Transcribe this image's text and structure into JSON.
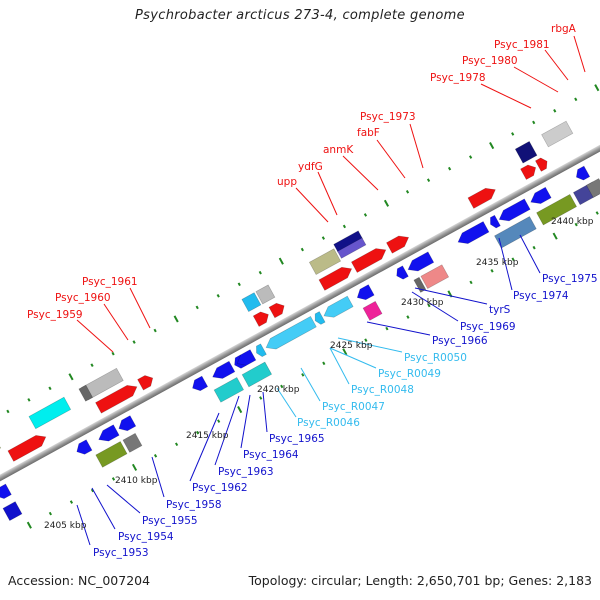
{
  "title": "Psychrobacter arcticus 273-4, complete genome",
  "footer": {
    "accession": "Accession: NC_007204",
    "summary": "Topology: circular; Length: 2,650,701 bp; Genes: 2,183"
  },
  "colors": {
    "forward_label": "#ee1111",
    "reverse_label": "#1111cc",
    "rna_label": "#33bbee",
    "backbone": "#999999",
    "tick": "#228822"
  },
  "kbp_ticks": [
    {
      "label": "2405 kbp"
    },
    {
      "label": "2410 kbp"
    },
    {
      "label": "2415 kbp"
    },
    {
      "label": "2420 kbp"
    },
    {
      "label": "2425 kbp"
    },
    {
      "label": "2430 kbp"
    },
    {
      "label": "2435 kbp"
    },
    {
      "label": "2440 kbp"
    }
  ],
  "top_labels": [
    {
      "text": "Psyc_1959",
      "strand": "forward"
    },
    {
      "text": "Psyc_1960",
      "strand": "forward"
    },
    {
      "text": "Psyc_1961",
      "strand": "forward"
    },
    {
      "text": "upp",
      "strand": "forward"
    },
    {
      "text": "ydfG",
      "strand": "forward"
    },
    {
      "text": "anmK",
      "strand": "forward"
    },
    {
      "text": "fabF",
      "strand": "forward"
    },
    {
      "text": "Psyc_1973",
      "strand": "forward"
    },
    {
      "text": "Psyc_1978",
      "strand": "forward"
    },
    {
      "text": "Psyc_1980",
      "strand": "forward"
    },
    {
      "text": "Psyc_1981",
      "strand": "forward"
    },
    {
      "text": "rbgA",
      "strand": "forward"
    }
  ],
  "bottom_labels": [
    {
      "text": "Psyc_1953",
      "strand": "reverse"
    },
    {
      "text": "Psyc_1954",
      "strand": "reverse"
    },
    {
      "text": "Psyc_1955",
      "strand": "reverse"
    },
    {
      "text": "Psyc_1958",
      "strand": "reverse"
    },
    {
      "text": "Psyc_1962",
      "strand": "reverse"
    },
    {
      "text": "Psyc_1963",
      "strand": "reverse"
    },
    {
      "text": "Psyc_1964",
      "strand": "reverse"
    },
    {
      "text": "Psyc_1965",
      "strand": "reverse"
    },
    {
      "text": "Psyc_R0046",
      "strand": "rna"
    },
    {
      "text": "Psyc_R0047",
      "strand": "rna"
    },
    {
      "text": "Psyc_R0048",
      "strand": "rna"
    },
    {
      "text": "Psyc_R0049",
      "strand": "rna"
    },
    {
      "text": "Psyc_R0050",
      "strand": "rna"
    },
    {
      "text": "Psyc_1966",
      "strand": "reverse"
    },
    {
      "text": "Psyc_1969",
      "strand": "reverse"
    },
    {
      "text": "tyrS",
      "strand": "reverse"
    },
    {
      "text": "Psyc_1974",
      "strand": "reverse"
    },
    {
      "text": "Psyc_1975",
      "strand": "reverse"
    }
  ]
}
